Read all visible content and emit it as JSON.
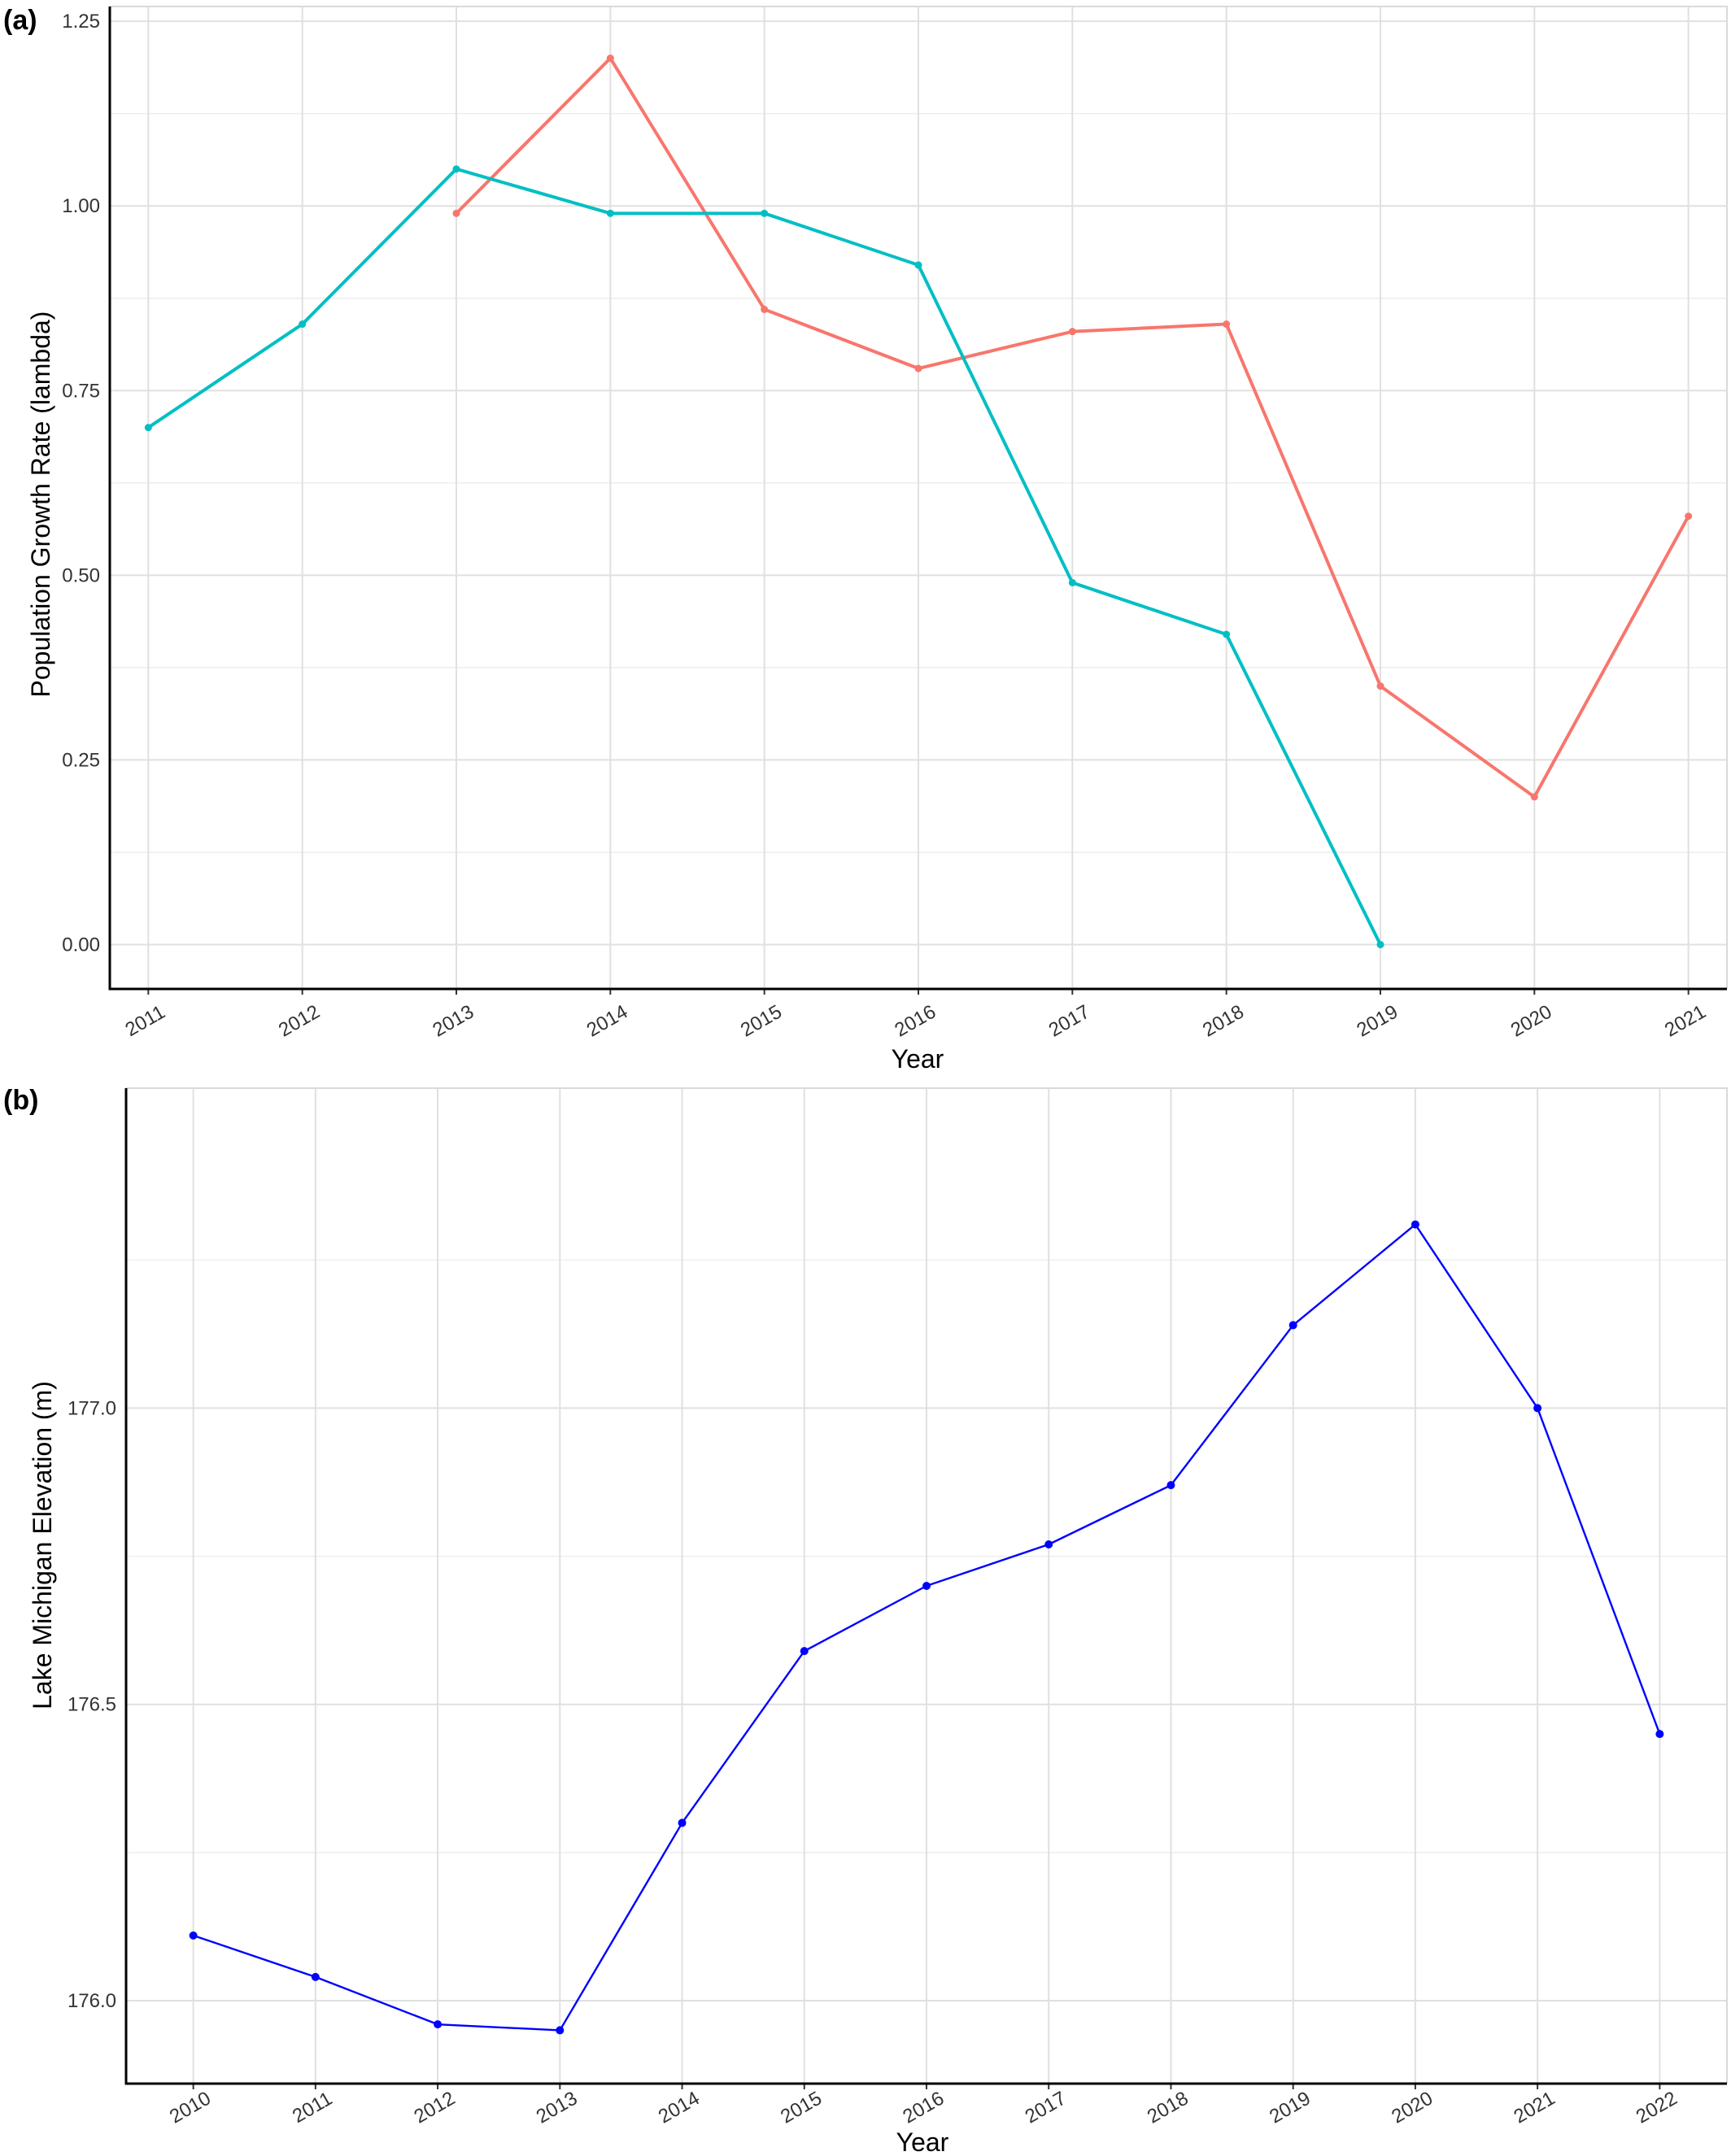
{
  "chart_data": [
    {
      "panel": "(a)",
      "type": "line",
      "xlabel": "Year",
      "ylabel": "Population Growth Rate (lambda)",
      "x_ticks": [
        "2011",
        "2012",
        "2013",
        "2014",
        "2015",
        "2016",
        "2017",
        "2018",
        "2019",
        "2020",
        "2021"
      ],
      "y_ticks": [
        "0.00",
        "0.25",
        "0.50",
        "0.75",
        "1.00",
        "1.25"
      ],
      "xlim": [
        2010.75,
        2021.25
      ],
      "ylim": [
        -0.06,
        1.27
      ],
      "grid": true,
      "legend": "none",
      "series": [
        {
          "color": "#F8766D",
          "x": [
            2013,
            2014,
            2015,
            2016,
            2017,
            2018,
            2019,
            2020,
            2021
          ],
          "y": [
            0.99,
            1.2,
            0.86,
            0.78,
            0.83,
            0.84,
            0.35,
            0.2,
            0.58
          ]
        },
        {
          "color": "#00BFC4",
          "x": [
            2011,
            2012,
            2013,
            2014,
            2015,
            2016,
            2017,
            2018,
            2019
          ],
          "y": [
            0.7,
            0.84,
            1.05,
            0.99,
            0.99,
            0.92,
            0.49,
            0.42,
            0.0
          ]
        }
      ]
    },
    {
      "panel": "(b)",
      "type": "line",
      "xlabel": "Year",
      "ylabel": "Lake Michigan Elevation (m)",
      "x_ticks": [
        "2010",
        "2011",
        "2012",
        "2013",
        "2014",
        "2015",
        "2016",
        "2017",
        "2018",
        "2019",
        "2020",
        "2021",
        "2022"
      ],
      "y_ticks": [
        "176.0",
        "176.5",
        "177.0"
      ],
      "xlim": [
        2009.45,
        2022.55
      ],
      "ylim": [
        175.86,
        177.54
      ],
      "grid": true,
      "legend": "none",
      "series": [
        {
          "color": "#0000FF",
          "x": [
            2010,
            2011,
            2012,
            2013,
            2014,
            2015,
            2016,
            2017,
            2018,
            2019,
            2020,
            2021,
            2022
          ],
          "y": [
            176.11,
            176.04,
            175.96,
            175.95,
            176.3,
            176.59,
            176.7,
            176.77,
            176.87,
            177.14,
            177.31,
            177.0,
            176.45
          ]
        }
      ]
    }
  ]
}
